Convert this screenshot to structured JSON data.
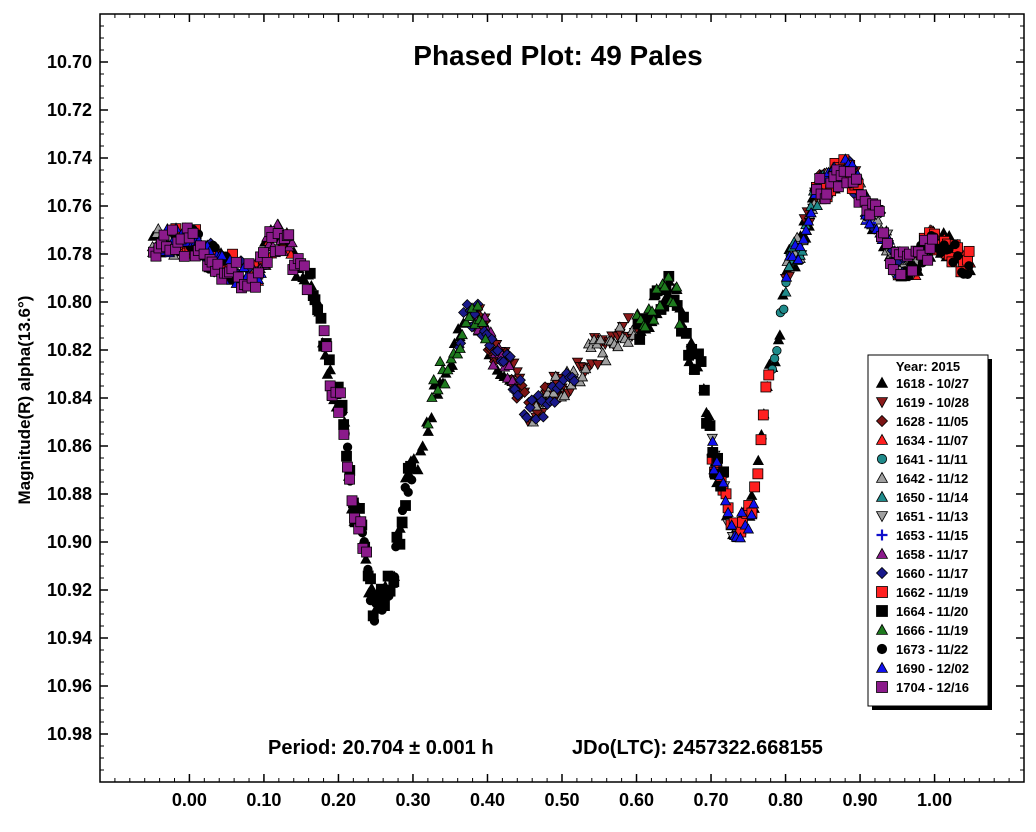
{
  "chart_data": {
    "type": "scatter",
    "title": "Phased Plot: 49 Pales",
    "xlabel": "",
    "ylabel": "Magnitude(R) alpha(13.6°)",
    "xlim": [
      -0.12,
      1.12
    ],
    "ylim": [
      10.68,
      11.0
    ],
    "y_inverted": true,
    "x_ticks": [
      0.0,
      0.1,
      0.2,
      0.3,
      0.4,
      0.5,
      0.6,
      0.7,
      0.8,
      0.9,
      1.0
    ],
    "x_tick_labels": [
      "0.00",
      "0.10",
      "0.20",
      "0.30",
      "0.40",
      "0.50",
      "0.60",
      "0.70",
      "0.80",
      "0.90",
      "1.00"
    ],
    "y_ticks": [
      10.7,
      10.72,
      10.74,
      10.76,
      10.78,
      10.8,
      10.82,
      10.84,
      10.86,
      10.88,
      10.9,
      10.92,
      10.94,
      10.96,
      10.98
    ],
    "y_tick_labels": [
      "10.70",
      "10.72",
      "10.74",
      "10.76",
      "10.78",
      "10.80",
      "10.82",
      "10.84",
      "10.86",
      "10.88",
      "10.90",
      "10.92",
      "10.94",
      "10.96",
      "10.98"
    ],
    "annotations": [
      {
        "text": "Period: 20.704 ± 0.001 h"
      },
      {
        "text": "JDo(LTC): 2457322.668155"
      }
    ],
    "legend": {
      "title": "Year: 2015",
      "placement": "right"
    },
    "grid": false,
    "lightcurve_shape": {
      "phase": [
        0.0,
        0.05,
        0.08,
        0.12,
        0.16,
        0.2,
        0.225,
        0.25,
        0.265,
        0.3,
        0.34,
        0.38,
        0.42,
        0.46,
        0.5,
        0.55,
        0.6,
        0.645,
        0.68,
        0.71,
        0.73,
        0.75,
        0.78,
        0.81,
        0.85,
        0.88,
        0.92,
        0.95,
        0.97,
        1.0,
        1.05
      ],
      "mag": [
        10.775,
        10.785,
        10.79,
        10.773,
        10.79,
        10.84,
        10.89,
        10.928,
        10.92,
        10.87,
        10.83,
        10.805,
        10.825,
        10.845,
        10.835,
        10.82,
        10.81,
        10.795,
        10.825,
        10.87,
        10.895,
        10.89,
        10.83,
        10.78,
        10.752,
        10.745,
        10.765,
        10.785,
        10.785,
        10.775,
        10.785
      ]
    },
    "series": [
      {
        "name": "1618 - 10/27",
        "marker": "triangle-up",
        "color": "#000000",
        "filled": true,
        "phase_ranges": [
          [
            -0.05,
            0.06
          ],
          [
            0.1,
            0.44
          ],
          [
            0.6,
            1.05
          ]
        ]
      },
      {
        "name": "1619 - 10/28",
        "marker": "triangle-down",
        "color": "#8b1a1a",
        "filled": true,
        "phase_ranges": [
          [
            0.38,
            0.6
          ],
          [
            0.8,
            0.9
          ]
        ]
      },
      {
        "name": "1628 - 11/05",
        "marker": "diamond",
        "color": "#7a1414",
        "filled": true,
        "phase_ranges": [
          [
            0.38,
            0.5
          ],
          [
            0.84,
            0.9
          ]
        ]
      },
      {
        "name": "1634 - 11/07",
        "marker": "triangle-up",
        "color": "#ff2020",
        "filled": true,
        "phase_ranges": [
          [
            0.08,
            0.14
          ],
          [
            0.95,
            1.05
          ]
        ]
      },
      {
        "name": "1641 - 11/11",
        "marker": "circle",
        "color": "#1f8a8a",
        "filled": true,
        "phase_ranges": [
          [
            0.78,
            0.82
          ]
        ]
      },
      {
        "name": "1642 - 11/12",
        "marker": "triangle-up",
        "color": "#a0a0a0",
        "filled": true,
        "phase_ranges": [
          [
            -0.05,
            0.02
          ],
          [
            0.46,
            0.6
          ],
          [
            0.8,
            0.98
          ]
        ]
      },
      {
        "name": "1650 - 11/14",
        "marker": "triangle-up",
        "color": "#1f8a8a",
        "filled": true,
        "phase_ranges": [
          [
            0.8,
            0.86
          ]
        ]
      },
      {
        "name": "1651 - 11/13",
        "marker": "triangle-down",
        "color": "#a0a0a0",
        "filled": true,
        "phase_ranges": [
          [
            0.7,
            0.74
          ],
          [
            0.92,
            0.98
          ]
        ]
      },
      {
        "name": "1653 - 11/15",
        "marker": "plus",
        "color": "#1010cc",
        "filled": true,
        "phase_ranges": [
          [
            0.86,
            0.92
          ]
        ]
      },
      {
        "name": "1658 - 11/17",
        "marker": "triangle-up",
        "color": "#8b1a8b",
        "filled": true,
        "phase_ranges": [
          [
            0.08,
            0.14
          ],
          [
            0.38,
            0.44
          ]
        ]
      },
      {
        "name": "1660 - 11/17",
        "marker": "diamond",
        "color": "#1a1a8b",
        "filled": true,
        "phase_ranges": [
          [
            0.02,
            0.08
          ],
          [
            0.36,
            0.52
          ],
          [
            0.88,
            0.96
          ]
        ]
      },
      {
        "name": "1662 - 11/19",
        "marker": "square",
        "color": "#ff2020",
        "filled": true,
        "phase_ranges": [
          [
            -0.02,
            0.06
          ],
          [
            0.7,
            0.78
          ],
          [
            0.84,
            0.9
          ],
          [
            0.98,
            1.05
          ]
        ]
      },
      {
        "name": "1664 - 11/20",
        "marker": "square",
        "color": "#000000",
        "filled": true,
        "phase_ranges": [
          [
            0.16,
            0.3
          ],
          [
            0.6,
            0.72
          ]
        ]
      },
      {
        "name": "1666 - 11/19",
        "marker": "triangle-up",
        "color": "#1e7a1e",
        "filled": true,
        "phase_ranges": [
          [
            0.32,
            0.4
          ],
          [
            0.6,
            0.66
          ]
        ]
      },
      {
        "name": "1673 - 11/22",
        "marker": "circle",
        "color": "#000000",
        "filled": true,
        "phase_ranges": [
          [
            0.0,
            0.06
          ],
          [
            0.2,
            0.3
          ],
          [
            0.96,
            1.05
          ]
        ]
      },
      {
        "name": "1690 - 12/02",
        "marker": "triangle-up",
        "color": "#1010ee",
        "filled": true,
        "phase_ranges": [
          [
            -0.05,
            0.1
          ],
          [
            0.7,
            0.76
          ],
          [
            0.8,
            0.96
          ]
        ]
      },
      {
        "name": "1704 - 12/16",
        "marker": "square",
        "color": "#8b1a8b",
        "filled": true,
        "phase_ranges": [
          [
            -0.05,
            0.16
          ],
          [
            0.18,
            0.24
          ],
          [
            0.84,
            1.0
          ]
        ]
      }
    ]
  }
}
